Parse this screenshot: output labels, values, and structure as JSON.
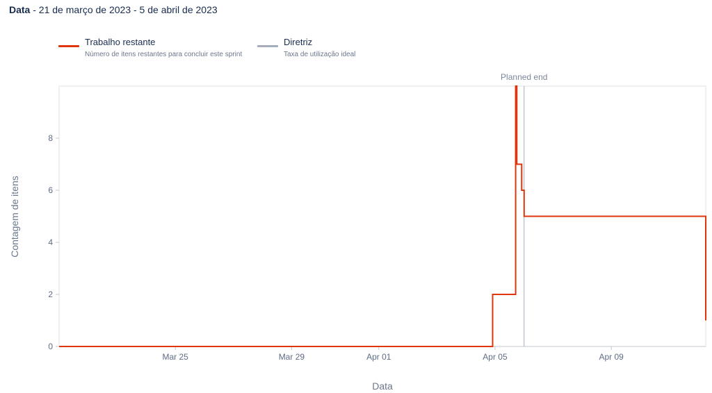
{
  "header": {
    "label": "Data",
    "range": " - 21 de março de 2023 - 5 de abril de 2023"
  },
  "legend": [
    {
      "title": "Trabalho restante",
      "description": "Número de itens restantes para concluir este sprint",
      "color": "#de350b"
    },
    {
      "title": "Diretriz",
      "description": "Taxa de utilização ideal",
      "color": "#a5adba"
    }
  ],
  "chart_data": {
    "type": "line",
    "line_shape": "step",
    "xlabel": "Data",
    "ylabel": "Contagem de itens",
    "xlim": [
      "2023-03-21T00:00",
      "2023-04-12T06:00"
    ],
    "ylim": [
      0,
      10
    ],
    "x_ticks": [
      {
        "date": "2023-03-25",
        "label": "Mar 25"
      },
      {
        "date": "2023-03-29",
        "label": "Mar 29"
      },
      {
        "date": "2023-04-01",
        "label": "Apr 01"
      },
      {
        "date": "2023-04-05",
        "label": "Apr 05"
      },
      {
        "date": "2023-04-09",
        "label": "Apr 09"
      }
    ],
    "y_ticks": [
      0,
      2,
      4,
      6,
      8
    ],
    "grid": false,
    "marker": {
      "label": "Planned end",
      "date": "2023-04-06T00:00",
      "color": "#a5adba"
    },
    "series": [
      {
        "name": "Trabalho restante",
        "color": "#de350b",
        "points": [
          {
            "x": "2023-03-21T00:00",
            "y": 0
          },
          {
            "x": "2023-04-04T22:00",
            "y": 2
          },
          {
            "x": "2023-04-05T17:00",
            "y": 10
          },
          {
            "x": "2023-04-05T18:00",
            "y": 7
          },
          {
            "x": "2023-04-05T22:00",
            "y": 6
          },
          {
            "x": "2023-04-06T00:00",
            "y": 5
          },
          {
            "x": "2023-04-12T06:00",
            "y": 1
          }
        ]
      }
    ]
  }
}
